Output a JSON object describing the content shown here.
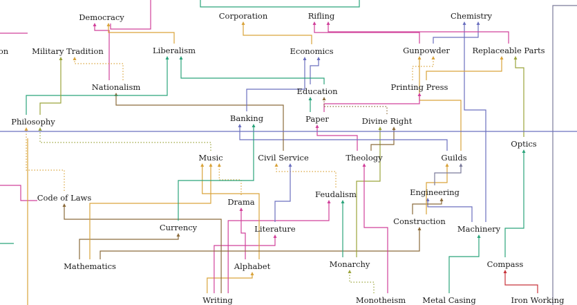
{
  "colors": {
    "teal": "#2aa37a",
    "orange": "#d9a33a",
    "magenta": "#d0409a",
    "purple": "#6a6fbf",
    "brown": "#8a6a3a",
    "salmon": "#e58a6a",
    "olive": "#9aa33a",
    "slate": "#7a7a9a",
    "red": "#c8333a",
    "label": "#1a1a1a"
  },
  "nodes": [
    {
      "id": "democracy",
      "label": "Democracy"
    },
    {
      "id": "corporation",
      "label": "Corporation"
    },
    {
      "id": "rifling",
      "label": "Rifling"
    },
    {
      "id": "chemistry",
      "label": "Chemistry"
    },
    {
      "id": "military_tradition",
      "label": "Military Tradition"
    },
    {
      "id": "liberalism",
      "label": "Liberalism"
    },
    {
      "id": "economics",
      "label": "Economics"
    },
    {
      "id": "gunpowder",
      "label": "Gunpowder"
    },
    {
      "id": "replaceable_parts",
      "label": "Replaceable Parts"
    },
    {
      "id": "nationalism",
      "label": "Nationalism"
    },
    {
      "id": "education",
      "label": "Education"
    },
    {
      "id": "printing_press",
      "label": "Printing Press"
    },
    {
      "id": "philosophy",
      "label": "Philosophy"
    },
    {
      "id": "banking",
      "label": "Banking"
    },
    {
      "id": "paper",
      "label": "Paper"
    },
    {
      "id": "divine_right",
      "label": "Divine Right"
    },
    {
      "id": "optics",
      "label": "Optics"
    },
    {
      "id": "music",
      "label": "Music"
    },
    {
      "id": "civil_service",
      "label": "Civil Service"
    },
    {
      "id": "theology",
      "label": "Theology"
    },
    {
      "id": "guilds",
      "label": "Guilds"
    },
    {
      "id": "code_of_laws",
      "label": "Code of Laws"
    },
    {
      "id": "drama",
      "label": "Drama"
    },
    {
      "id": "feudalism",
      "label": "Feudalism"
    },
    {
      "id": "engineering",
      "label": "Engineering"
    },
    {
      "id": "currency",
      "label": "Currency"
    },
    {
      "id": "literature",
      "label": "Literature"
    },
    {
      "id": "construction",
      "label": "Construction"
    },
    {
      "id": "machinery",
      "label": "Machinery"
    },
    {
      "id": "mathematics",
      "label": "Mathematics"
    },
    {
      "id": "alphabet",
      "label": "Alphabet"
    },
    {
      "id": "monarchy",
      "label": "Monarchy"
    },
    {
      "id": "compass",
      "label": "Compass"
    },
    {
      "id": "writing",
      "label": "Writing"
    },
    {
      "id": "monotheism",
      "label": "Monotheism"
    },
    {
      "id": "metal_casing",
      "label": "Metal Casing"
    },
    {
      "id": "iron_working",
      "label": "Iron Working"
    },
    {
      "id": "partial_left",
      "label": "on"
    }
  ],
  "edges": [
    {
      "from": "writing",
      "to": "alphabet",
      "color": "orange"
    },
    {
      "from": "writing",
      "to": "literature",
      "color": "magenta"
    },
    {
      "from": "writing",
      "to": "code_of_laws",
      "color": "brown"
    },
    {
      "from": "writing",
      "to": "feudalism",
      "color": "magenta"
    },
    {
      "from": "alphabet",
      "to": "drama",
      "color": "magenta"
    },
    {
      "from": "alphabet",
      "to": "music",
      "color": "orange"
    },
    {
      "from": "mathematics",
      "to": "currency",
      "color": "brown"
    },
    {
      "from": "mathematics",
      "to": "music",
      "color": "orange"
    },
    {
      "from": "mathematics",
      "to": "construction",
      "color": "brown"
    },
    {
      "from": "monarchy",
      "to": "feudalism",
      "color": "teal"
    },
    {
      "from": "monarchy",
      "to": "divine_right",
      "color": "olive"
    },
    {
      "from": "monotheism",
      "to": "monarchy",
      "color": "olive",
      "dotted": true
    },
    {
      "from": "monotheism",
      "to": "theology",
      "color": "magenta"
    },
    {
      "from": "metal_casing",
      "to": "machinery",
      "color": "teal"
    },
    {
      "from": "iron_working",
      "to": "compass",
      "color": "red"
    },
    {
      "from": "compass",
      "to": "optics",
      "color": "teal"
    },
    {
      "from": "machinery",
      "to": "engineering",
      "color": "purple"
    },
    {
      "from": "machinery",
      "to": "chemistry",
      "color": "purple"
    },
    {
      "from": "construction",
      "to": "engineering",
      "color": "brown"
    },
    {
      "from": "construction",
      "to": "guilds",
      "color": "orange"
    },
    {
      "from": "engineering",
      "to": "guilds",
      "color": "slate"
    },
    {
      "from": "feudalism",
      "to": "civil_service",
      "color": "orange",
      "dotted": true
    },
    {
      "from": "theology",
      "to": "paper",
      "color": "magenta"
    },
    {
      "from": "theology",
      "to": "divine_right",
      "color": "brown"
    },
    {
      "from": "guilds",
      "to": "banking",
      "color": "purple"
    },
    {
      "from": "guilds",
      "to": "gunpowder",
      "color": "orange"
    },
    {
      "from": "literature",
      "to": "civil_service",
      "color": "purple"
    },
    {
      "from": "drama",
      "to": "music",
      "color": "orange",
      "dotted": true
    },
    {
      "from": "currency",
      "to": "banking",
      "color": "teal"
    },
    {
      "from": "code_of_laws",
      "to": "philosophy",
      "color": "orange",
      "dotted": true
    },
    {
      "from": "civil_service",
      "to": "nationalism",
      "color": "brown"
    },
    {
      "from": "music",
      "to": "philosophy",
      "color": "olive",
      "dotted": true
    },
    {
      "from": "banking",
      "to": "economics",
      "color": "purple"
    },
    {
      "from": "paper",
      "to": "education",
      "color": "teal"
    },
    {
      "from": "paper",
      "to": "printing_press",
      "color": "magenta"
    },
    {
      "from": "divine_right",
      "to": "education",
      "color": "brown",
      "dotted": true
    },
    {
      "from": "philosophy",
      "to": "liberalism",
      "color": "teal"
    },
    {
      "from": "philosophy",
      "to": "military_tradition",
      "color": "olive"
    },
    {
      "from": "nationalism",
      "to": "democracy",
      "color": "magenta"
    },
    {
      "from": "nationalism",
      "to": "military_tradition",
      "color": "orange",
      "dotted": true
    },
    {
      "from": "education",
      "to": "economics",
      "color": "purple"
    },
    {
      "from": "education",
      "to": "liberalism",
      "color": "teal"
    },
    {
      "from": "printing_press",
      "to": "gunpowder",
      "color": "orange",
      "dotted": true
    },
    {
      "from": "printing_press",
      "to": "replaceable_parts",
      "color": "orange"
    },
    {
      "from": "optics",
      "to": "replaceable_parts",
      "color": "olive"
    },
    {
      "from": "economics",
      "to": "corporation",
      "color": "orange"
    },
    {
      "from": "gunpowder",
      "to": "rifling",
      "color": "magenta"
    },
    {
      "from": "gunpowder",
      "to": "chemistry",
      "color": "purple"
    },
    {
      "from": "replaceable_parts",
      "to": "rifling",
      "color": "magenta"
    },
    {
      "from": "liberalism",
      "to": "democracy",
      "color": "orange"
    }
  ]
}
